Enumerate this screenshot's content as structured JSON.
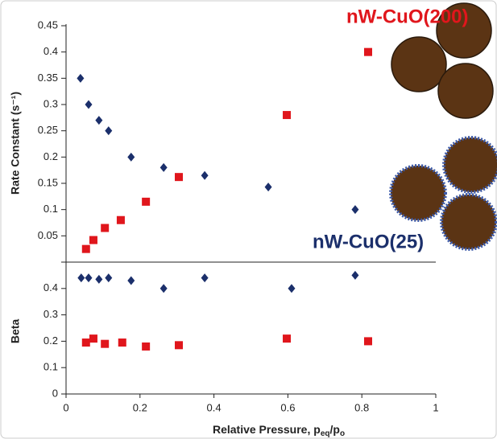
{
  "chart_data": [
    {
      "type": "scatter",
      "ylabel": "Rate Constant (s⁻¹)",
      "xlim": [
        0,
        1
      ],
      "ylim": [
        0,
        0.45
      ],
      "yticks": [
        0.05,
        0.1,
        0.15,
        0.2,
        0.25,
        0.3,
        0.35,
        0.4,
        0.45
      ],
      "series": [
        {
          "name": "nW-CuO(25)",
          "color": "#1b2f6b",
          "marker": "diamond",
          "x": [
            0.039,
            0.061,
            0.089,
            0.115,
            0.176,
            0.264,
            0.375,
            0.547,
            0.782
          ],
          "values": [
            0.35,
            0.3,
            0.27,
            0.25,
            0.2,
            0.18,
            0.165,
            0.143,
            0.1
          ]
        },
        {
          "name": "nW-CuO(200)",
          "color": "#e0161c",
          "marker": "square",
          "x": [
            0.054,
            0.074,
            0.105,
            0.148,
            0.216,
            0.305,
            0.597,
            0.817
          ],
          "values": [
            0.025,
            0.042,
            0.065,
            0.08,
            0.115,
            0.162,
            0.28,
            0.4
          ]
        }
      ]
    },
    {
      "type": "scatter",
      "ylabel": "Beta",
      "xlabel": [
        "Relative Pressure, p",
        "eq",
        "/p",
        "o"
      ],
      "xlim": [
        0,
        1
      ],
      "ylim": [
        0,
        0.5
      ],
      "xticks": [
        0,
        0.2,
        0.4,
        0.6,
        0.8,
        1
      ],
      "yticks": [
        0,
        0.1,
        0.2,
        0.3,
        0.4
      ],
      "series": [
        {
          "name": "nW-CuO(25)",
          "color": "#1b2f6b",
          "marker": "diamond",
          "x": [
            0.041,
            0.061,
            0.089,
            0.115,
            0.176,
            0.264,
            0.375,
            0.61,
            0.782
          ],
          "values": [
            0.44,
            0.44,
            0.435,
            0.44,
            0.43,
            0.4,
            0.44,
            0.4,
            0.45
          ]
        },
        {
          "name": "nW-CuO(200)",
          "color": "#e0161c",
          "marker": "square",
          "x": [
            0.054,
            0.074,
            0.105,
            0.152,
            0.216,
            0.305,
            0.597,
            0.817
          ],
          "values": [
            0.195,
            0.21,
            0.19,
            0.195,
            0.18,
            0.185,
            0.21,
            0.2
          ]
        }
      ]
    }
  ]
}
